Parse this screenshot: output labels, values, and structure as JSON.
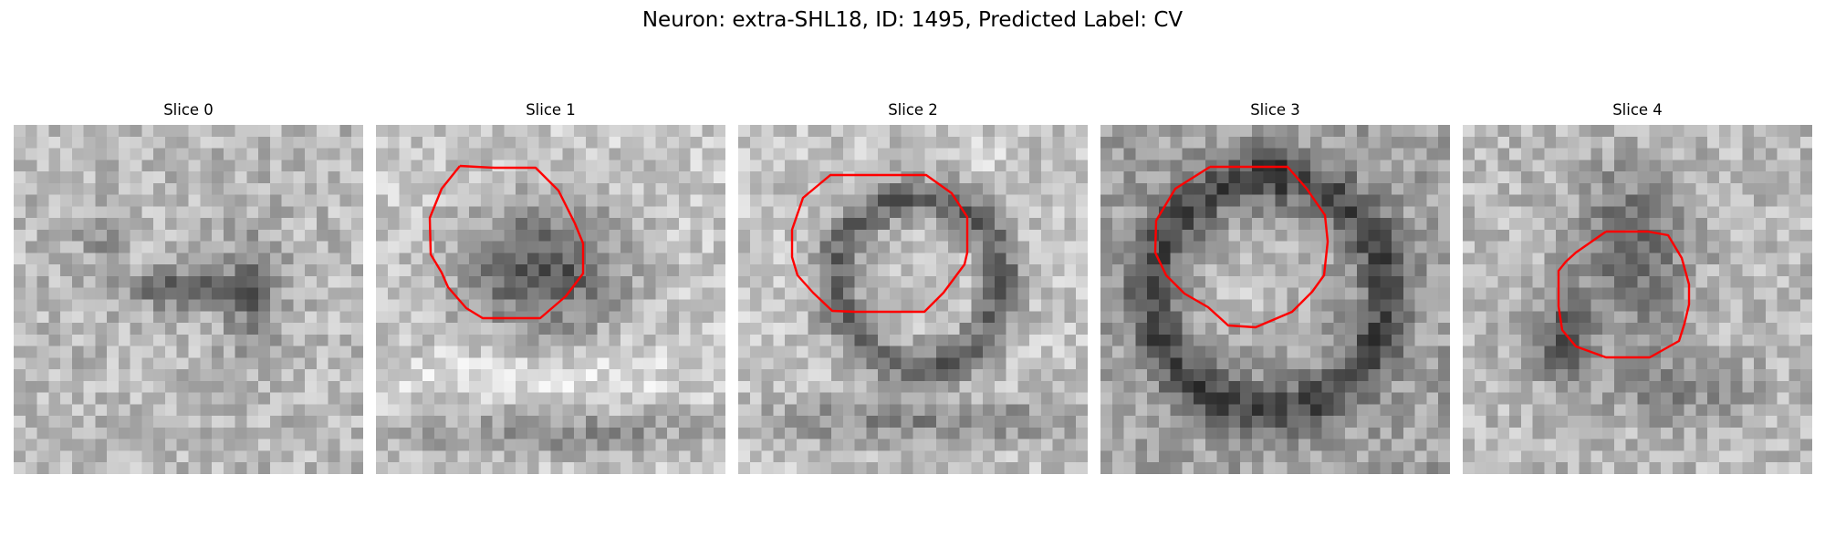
{
  "figure": {
    "title": "Neuron: extra-SHL18, ID: 1495, Predicted Label: CV",
    "contour_color": "#ff0000",
    "colormap": "gray"
  },
  "slices": [
    {
      "title": "Slice 0",
      "has_contour": false
    },
    {
      "title": "Slice 1",
      "has_contour": true
    },
    {
      "title": "Slice 2",
      "has_contour": true
    },
    {
      "title": "Slice 3",
      "has_contour": true
    },
    {
      "title": "Slice 4",
      "has_contour": true
    }
  ]
}
